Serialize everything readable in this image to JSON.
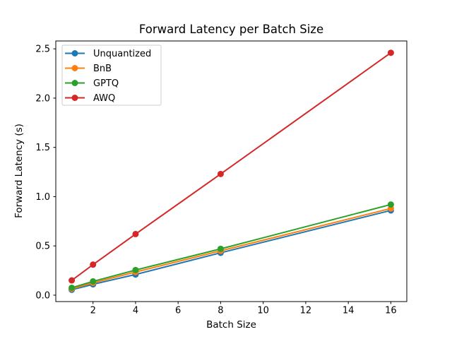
{
  "figure": {
    "kind": "matplotlib-line-chart"
  },
  "chart_data": {
    "type": "line",
    "title": "Forward Latency per Batch Size",
    "xlabel": "Batch Size",
    "ylabel": "Forward Latency (s)",
    "x": [
      1,
      2,
      4,
      8,
      16
    ],
    "series": [
      {
        "name": "Unquantized",
        "color": "#1f77b4",
        "values": [
          0.055,
          0.11,
          0.21,
          0.43,
          0.86
        ]
      },
      {
        "name": "BnB",
        "color": "#ff7f0e",
        "values": [
          0.065,
          0.125,
          0.235,
          0.45,
          0.88
        ]
      },
      {
        "name": "GPTQ",
        "color": "#2ca02c",
        "values": [
          0.075,
          0.14,
          0.255,
          0.47,
          0.92
        ]
      },
      {
        "name": "AWQ",
        "color": "#d62728",
        "values": [
          0.15,
          0.31,
          0.62,
          1.23,
          2.46
        ]
      }
    ],
    "xlim": [
      0.25,
      16.75
    ],
    "ylim": [
      -0.065,
      2.58
    ],
    "xticks": [
      2,
      4,
      6,
      8,
      10,
      12,
      14,
      16
    ],
    "xtick_labels": [
      "2",
      "4",
      "6",
      "8",
      "10",
      "12",
      "14",
      "16"
    ],
    "yticks": [
      0.0,
      0.5,
      1.0,
      1.5,
      2.0,
      2.5
    ],
    "ytick_labels": [
      "0.0",
      "0.5",
      "1.0",
      "1.5",
      "2.0",
      "2.5"
    ],
    "legend_position": "upper left",
    "legend_entries": [
      "Unquantized",
      "BnB",
      "GPTQ",
      "AWQ"
    ],
    "grid": false,
    "marker": "o",
    "colors": {
      "spine": "#000000",
      "tick_text": "#000000",
      "legend_border": "#cccccc",
      "legend_background": "#ffffff"
    }
  }
}
